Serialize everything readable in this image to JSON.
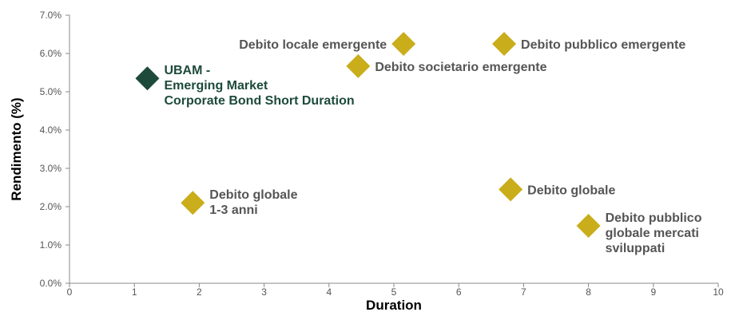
{
  "chart_data": {
    "type": "scatter",
    "xlabel": "Duration",
    "ylabel": "Rendimento (%)",
    "xlim": [
      0,
      10
    ],
    "ylim": [
      0,
      7
    ],
    "x_ticks": [
      "0",
      "1",
      "2",
      "3",
      "4",
      "5",
      "6",
      "7",
      "8",
      "9",
      "10"
    ],
    "y_ticks": [
      "0.0%",
      "1.0%",
      "2.0%",
      "3.0%",
      "4.0%",
      "5.0%",
      "6.0%",
      "7.0%"
    ],
    "grid": false,
    "marker": "diamond",
    "colors": {
      "highlight": "#1d4a3a",
      "peer": "#c9ad1a",
      "peer_label": "#555555"
    },
    "points": [
      {
        "lines": [
          "UBAM -",
          "Emerging Market",
          "Corporate Bond Short Duration"
        ],
        "x": 1.2,
        "y": 5.35,
        "highlight": true,
        "label_pos": "right-top"
      },
      {
        "lines": [
          "Debito locale emergente"
        ],
        "x": 5.15,
        "y": 6.25,
        "highlight": false,
        "label_pos": "left"
      },
      {
        "lines": [
          "Debito pubblico emergente"
        ],
        "x": 6.7,
        "y": 6.25,
        "highlight": false,
        "label_pos": "right"
      },
      {
        "lines": [
          "Debito societario emergente"
        ],
        "x": 4.45,
        "y": 5.67,
        "highlight": false,
        "label_pos": "right"
      },
      {
        "lines": [
          "Debito globale",
          "1-3 anni"
        ],
        "x": 1.9,
        "y": 2.1,
        "highlight": false,
        "label_pos": "right-top"
      },
      {
        "lines": [
          "Debito globale"
        ],
        "x": 6.8,
        "y": 2.45,
        "highlight": false,
        "label_pos": "right"
      },
      {
        "lines": [
          "Debito pubblico",
          "globale mercati",
          "sviluppati"
        ],
        "x": 8.0,
        "y": 1.5,
        "highlight": false,
        "label_pos": "right-top"
      }
    ]
  }
}
